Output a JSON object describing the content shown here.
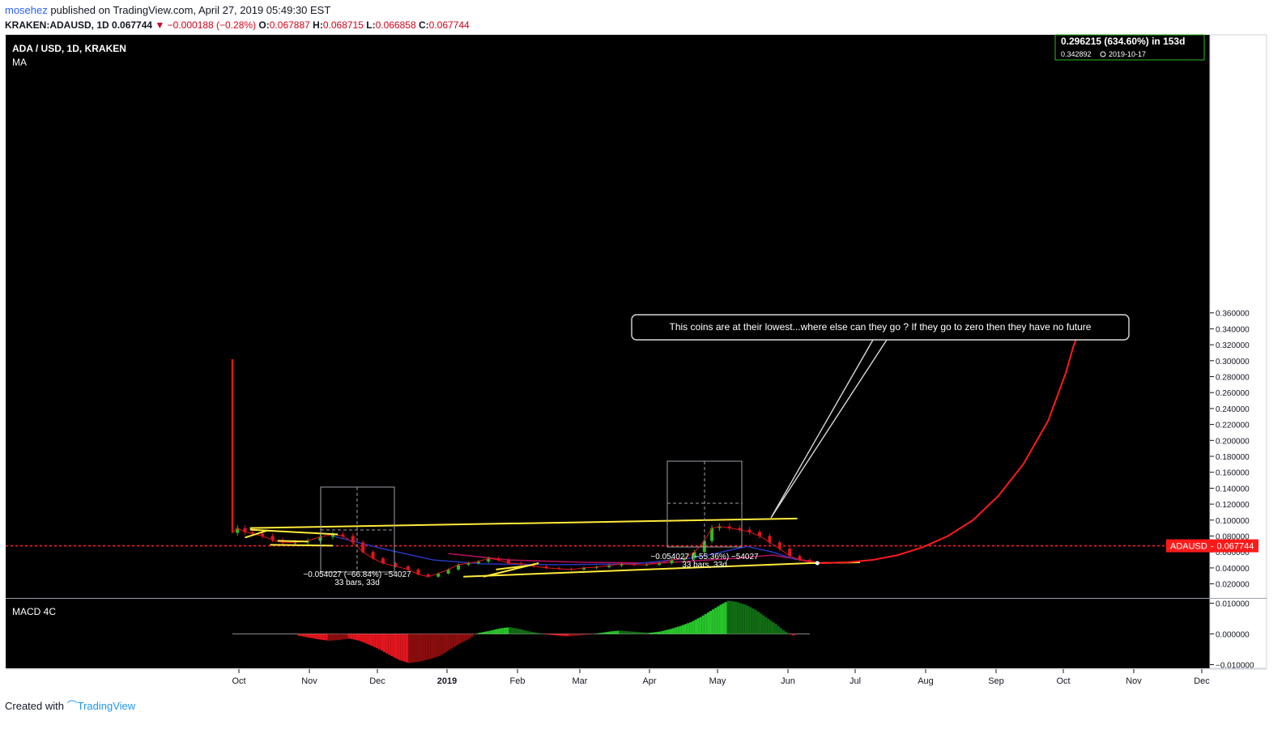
{
  "header": {
    "author": "mosehez",
    "published_text": " published on TradingView.com, April 27, 2019 05:49:30 EST",
    "symbol_line": "KRAKEN:ADAUSD, 1D",
    "last": "0.067744",
    "change": "−0.000188 (−0.28%)",
    "open_label": "O:",
    "open": "0.067887",
    "high_label": "H:",
    "high": "0.068715",
    "low_label": "L:",
    "low": "0.066858",
    "close_label": "C:",
    "close": "0.067744"
  },
  "legend": {
    "title": "ADA / USD, 1D, KRAKEN",
    "indicator": "MA",
    "macd_label": "MACD 4C"
  },
  "annotations": {
    "target_main": "0.296215 (634.60%) in 153d",
    "target_price": "0.342892",
    "target_date": "2019-10-17",
    "callout": "This coins are at their lowest...where else can they go ? If they go to zero then they have no future",
    "measure1_main": "−0.054027 (−66.84%) −54027",
    "measure1_sub": "33 bars, 33d",
    "measure2_main": "−0.054027 (−55.36%) −54027",
    "measure2_sub": "33 bars, 33d",
    "price_tag_symbol": "ADAUSD",
    "price_tag_value": "0.067744"
  },
  "footer": {
    "created": "Created with",
    "brand": "TradingView"
  },
  "colors": {
    "bg": "#000000",
    "up": "#2ebd1f",
    "down": "#e0151d",
    "trend": "#ffeb3b",
    "projection": "#ff1a1a",
    "ma_red": "#b0105a",
    "ma_blue": "#2b39c8",
    "grid_text": "#131722"
  },
  "chart_data": {
    "type": "line",
    "x_ticks": [
      "Oct",
      "Nov",
      "Dec",
      "2019",
      "Feb",
      "Mar",
      "Apr",
      "May",
      "Jun",
      "Jul",
      "Aug",
      "Sep",
      "Oct",
      "Nov",
      "Dec"
    ],
    "y_ticks": [
      "0.360000",
      "0.340000",
      "0.320000",
      "0.300000",
      "0.280000",
      "0.260000",
      "0.240000",
      "0.220000",
      "0.200000",
      "0.180000",
      "0.160000",
      "0.140000",
      "0.120000",
      "0.100000",
      "0.080000",
      "0.060000",
      "0.040000",
      "0.020000"
    ],
    "ylim": [
      0.008,
      0.37
    ],
    "macd_ticks": [
      "0.010000",
      "0.000000",
      "−0.010000"
    ],
    "macd_ylim": [
      -0.0105,
      0.0105
    ],
    "series": [
      {
        "values": [
          [
            0,
            0.084
          ],
          [
            2,
            0.09
          ],
          [
            5,
            0.085
          ],
          [
            8,
            0.083
          ],
          [
            12,
            0.08
          ],
          [
            16,
            0.075
          ],
          [
            20,
            0.072
          ],
          [
            25,
            0.072
          ],
          [
            30,
            0.074
          ],
          [
            35,
            0.079
          ],
          [
            40,
            0.082
          ],
          [
            44,
            0.08
          ],
          [
            48,
            0.072
          ],
          [
            52,
            0.06
          ],
          [
            56,
            0.052
          ],
          [
            60,
            0.046
          ],
          [
            65,
            0.042
          ],
          [
            70,
            0.038
          ],
          [
            74,
            0.032
          ],
          [
            78,
            0.029
          ],
          [
            82,
            0.033
          ],
          [
            86,
            0.038
          ],
          [
            90,
            0.044
          ],
          [
            94,
            0.046
          ],
          [
            98,
            0.048
          ],
          [
            102,
            0.052
          ],
          [
            106,
            0.05
          ],
          [
            110,
            0.046
          ],
          [
            115,
            0.045
          ],
          [
            120,
            0.042
          ],
          [
            125,
            0.04
          ],
          [
            130,
            0.039
          ],
          [
            135,
            0.038
          ],
          [
            140,
            0.04
          ],
          [
            145,
            0.041
          ],
          [
            150,
            0.043
          ],
          [
            155,
            0.045
          ],
          [
            160,
            0.044
          ],
          [
            165,
            0.044
          ],
          [
            170,
            0.046
          ],
          [
            175,
            0.05
          ],
          [
            180,
            0.052
          ],
          [
            184,
            0.06
          ],
          [
            188,
            0.074
          ],
          [
            191,
            0.09
          ],
          [
            194,
            0.092
          ],
          [
            198,
            0.09
          ],
          [
            202,
            0.088
          ],
          [
            206,
            0.085
          ],
          [
            210,
            0.08
          ],
          [
            214,
            0.072
          ],
          [
            218,
            0.064
          ],
          [
            222,
            0.055
          ],
          [
            226,
            0.05
          ],
          [
            230,
            0.047
          ],
          [
            233,
            0.046
          ]
        ]
      },
      {
        "values": [
          [
            233,
            0.046
          ],
          [
            245,
            0.047
          ],
          [
            255,
            0.05
          ],
          [
            265,
            0.056
          ],
          [
            275,
            0.066
          ],
          [
            285,
            0.08
          ],
          [
            295,
            0.1
          ],
          [
            305,
            0.13
          ],
          [
            315,
            0.17
          ],
          [
            325,
            0.225
          ],
          [
            332,
            0.285
          ],
          [
            335,
            0.318
          ],
          [
            338,
            0.343
          ]
        ]
      }
    ],
    "spike": {
      "x": 0,
      "high": 0.302
    },
    "macd": [
      [
        26,
        -0.0006
      ],
      [
        30,
        -0.0012
      ],
      [
        34,
        -0.0018
      ],
      [
        38,
        -0.0022
      ],
      [
        42,
        -0.002
      ],
      [
        46,
        -0.0015
      ],
      [
        50,
        -0.0022
      ],
      [
        54,
        -0.0035
      ],
      [
        58,
        -0.005
      ],
      [
        62,
        -0.0068
      ],
      [
        66,
        -0.0085
      ],
      [
        70,
        -0.0095
      ],
      [
        74,
        -0.009
      ],
      [
        78,
        -0.0082
      ],
      [
        82,
        -0.0072
      ],
      [
        86,
        -0.0052
      ],
      [
        90,
        -0.0032
      ],
      [
        94,
        -0.0015
      ],
      [
        96,
        -0.0002
      ],
      [
        98,
        0.0004
      ],
      [
        102,
        0.001
      ],
      [
        106,
        0.0018
      ],
      [
        110,
        0.0022
      ],
      [
        114,
        0.0016
      ],
      [
        118,
        0.0008
      ],
      [
        122,
        0.0002
      ],
      [
        126,
        -0.0003
      ],
      [
        130,
        -0.0006
      ],
      [
        134,
        -0.0008
      ],
      [
        138,
        -0.0005
      ],
      [
        142,
        -0.0002
      ],
      [
        146,
        0.0003
      ],
      [
        150,
        0.0008
      ],
      [
        154,
        0.0011
      ],
      [
        158,
        0.0008
      ],
      [
        162,
        0.0006
      ],
      [
        166,
        0.0004
      ],
      [
        170,
        0.0008
      ],
      [
        174,
        0.0016
      ],
      [
        178,
        0.0026
      ],
      [
        182,
        0.0038
      ],
      [
        186,
        0.0055
      ],
      [
        190,
        0.0075
      ],
      [
        194,
        0.0095
      ],
      [
        197,
        0.0108
      ],
      [
        200,
        0.0105
      ],
      [
        204,
        0.0095
      ],
      [
        208,
        0.0078
      ],
      [
        212,
        0.0055
      ],
      [
        216,
        0.0032
      ],
      [
        219,
        0.0012
      ],
      [
        222,
        -0.0002
      ],
      [
        224,
        -0.0008
      ]
    ],
    "trendlines": [
      [
        [
          7,
          0.09
        ],
        [
          225,
          0.102
        ]
      ],
      [
        [
          92,
          0.029
        ],
        [
          230,
          0.046
        ]
      ],
      [
        [
          105,
          0.038
        ],
        [
          118,
          0.043
        ]
      ],
      [
        [
          100,
          0.029
        ],
        [
          122,
          0.046
        ]
      ],
      [
        [
          5,
          0.078
        ],
        [
          14,
          0.087
        ]
      ],
      [
        [
          7,
          0.088
        ],
        [
          42,
          0.082
        ]
      ],
      [
        [
          15,
          0.069
        ],
        [
          40,
          0.068
        ]
      ],
      [
        [
          18,
          0.074
        ],
        [
          30,
          0.073
        ]
      ],
      [
        [
          230,
          0.046
        ],
        [
          250,
          0.047
        ]
      ]
    ],
    "ma_red": [
      [
        86,
        0.058
      ],
      [
        110,
        0.05
      ],
      [
        140,
        0.047
      ],
      [
        170,
        0.046
      ],
      [
        200,
        0.052
      ],
      [
        215,
        0.056
      ],
      [
        225,
        0.051
      ],
      [
        233,
        0.047
      ]
    ],
    "ma_blue": [
      [
        40,
        0.08
      ],
      [
        60,
        0.064
      ],
      [
        80,
        0.05
      ],
      [
        100,
        0.045
      ],
      [
        130,
        0.044
      ],
      [
        160,
        0.045
      ],
      [
        185,
        0.053
      ],
      [
        205,
        0.067
      ],
      [
        215,
        0.06
      ],
      [
        225,
        0.05
      ]
    ],
    "current_price": 0.067744
  }
}
